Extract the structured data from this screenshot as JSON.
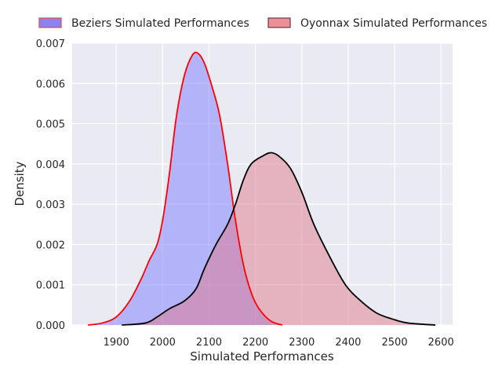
{
  "chart_data": {
    "type": "area",
    "title": "",
    "xlabel": "Simulated Performances",
    "ylabel": "Density",
    "xlim": [
      1805,
      2625
    ],
    "ylim": [
      0,
      0.007
    ],
    "xticks": [
      1900,
      2000,
      2100,
      2200,
      2300,
      2400,
      2500,
      2600
    ],
    "xtick_labels": [
      "1900",
      "2000",
      "2100",
      "2200",
      "2300",
      "2400",
      "2500",
      "2600"
    ],
    "yticks": [
      0,
      0.001,
      0.002,
      0.003,
      0.004,
      0.005,
      0.006,
      0.007
    ],
    "ytick_labels": [
      "0.000",
      "0.001",
      "0.002",
      "0.003",
      "0.004",
      "0.005",
      "0.006",
      "0.007"
    ],
    "grid": true,
    "legend_position": "top-outside",
    "series": [
      {
        "name": "Beziers Simulated Performances",
        "fill": "#7b7bff",
        "line": "#ff0000",
        "legend_fill": "#8a84f0",
        "legend_edge": "#e8434f",
        "x": [
          1839,
          1870,
          1900,
          1929,
          1954,
          1971,
          1988,
          2000,
          2014,
          2030,
          2047,
          2064,
          2076,
          2090,
          2107,
          2123,
          2140,
          2157,
          2174,
          2191,
          2208,
          2233,
          2258
        ],
        "y": [
          0,
          5e-05,
          0.0002,
          0.0006,
          0.00115,
          0.0016,
          0.002,
          0.0026,
          0.0037,
          0.0052,
          0.0062,
          0.0067,
          0.00675,
          0.0065,
          0.0059,
          0.0052,
          0.004,
          0.0026,
          0.0015,
          0.0008,
          0.0004,
          0.0001,
          0
        ]
      },
      {
        "name": "Oyonnax Simulated Performances",
        "fill": "#e07a8e",
        "line": "#000000",
        "legend_fill": "#ee8f98",
        "legend_edge": "#6b3a40",
        "x": [
          1912,
          1963,
          1988,
          2014,
          2047,
          2072,
          2090,
          2115,
          2140,
          2157,
          2174,
          2191,
          2216,
          2233,
          2250,
          2275,
          2300,
          2326,
          2360,
          2394,
          2427,
          2461,
          2495,
          2529,
          2588
        ],
        "y": [
          0,
          5e-05,
          0.0002,
          0.0004,
          0.0006,
          0.0009,
          0.0014,
          0.002,
          0.0025,
          0.003,
          0.0036,
          0.004,
          0.0042,
          0.00428,
          0.0042,
          0.0039,
          0.0033,
          0.0025,
          0.0017,
          0.001,
          0.0006,
          0.0003,
          0.00015,
          5e-05,
          0
        ]
      }
    ]
  }
}
